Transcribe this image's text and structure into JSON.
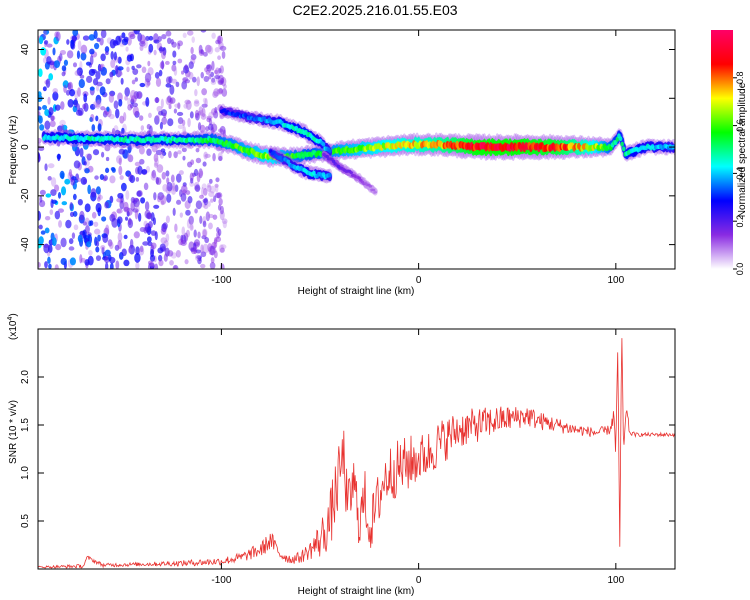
{
  "title": "C2E2.2025.216.01.55.E03",
  "chart_data": [
    {
      "type": "heatmap",
      "xlabel": "Height of straight line (km)",
      "ylabel": "Frequency (Hz)",
      "xlim": [
        -193,
        130
      ],
      "ylim": [
        -50,
        48
      ],
      "xticks": [
        -100,
        0,
        100
      ],
      "xtick_labels": [
        "-100",
        "0",
        "100"
      ],
      "yticks": [
        40,
        20,
        0,
        -20,
        -40
      ],
      "ytick_labels": [
        "40",
        "20",
        "0",
        "-20",
        "-40"
      ],
      "colorbar": {
        "label": "Normalized spectral amplitude",
        "range": [
          0.0,
          1.0
        ],
        "ticks": [
          0.0,
          0.2,
          0.4,
          0.6,
          0.8
        ],
        "tick_labels": [
          "0.0",
          "0.2",
          "0.4",
          "0.6",
          "0.8"
        ],
        "colormap": [
          "#ffffff",
          "#8a2be2",
          "#0000ff",
          "#00ffff",
          "#00ff00",
          "#ffff00",
          "#ff0000",
          "#ff0066"
        ]
      },
      "ridges": [
        {
          "x": [
            -190,
            -150,
            -120,
            -105,
            -95,
            -85,
            -75,
            -65,
            -55,
            -45,
            -35,
            -20,
            -5,
            10,
            30,
            50,
            70,
            90,
            98,
            102,
            105,
            115,
            130
          ],
          "y": [
            4,
            3,
            3,
            3,
            1,
            -2,
            -4,
            -4,
            -3,
            -2,
            -1,
            0,
            1,
            1,
            0,
            0,
            0,
            0,
            0,
            5,
            -3,
            0,
            0
          ],
          "amplitude": [
            0.45,
            0.5,
            0.5,
            0.55,
            0.6,
            0.65,
            0.7,
            0.6,
            0.55,
            0.6,
            0.65,
            0.7,
            0.75,
            0.8,
            0.95,
            0.95,
            0.9,
            0.7,
            0.55,
            0.5,
            0.5,
            0.45,
            0.4
          ]
        },
        {
          "x": [
            -100,
            -85,
            -70,
            -58,
            -50,
            -45
          ],
          "y": [
            15,
            12,
            10,
            6,
            2,
            -2
          ],
          "amplitude": [
            0.3,
            0.35,
            0.45,
            0.5,
            0.45,
            0.4
          ]
        },
        {
          "x": [
            -75,
            -65,
            -55,
            -45
          ],
          "y": [
            -2,
            -7,
            -11,
            -12
          ],
          "amplitude": [
            0.3,
            0.4,
            0.45,
            0.4
          ]
        },
        {
          "x": [
            -48,
            -40,
            -30,
            -22
          ],
          "y": [
            -3,
            -8,
            -13,
            -18
          ],
          "amplitude": [
            0.2,
            0.2,
            0.15,
            0.1
          ]
        }
      ],
      "noise_region": {
        "x": [
          -193,
          -98
        ],
        "y": [
          -50,
          48
        ],
        "amplitude_max": 0.25
      }
    },
    {
      "type": "line",
      "xlabel": "Height of straight line (km)",
      "ylabel": "SNR (10 * v/v)",
      "y_multiplier": "(x10",
      "y_multiplier_exp": "4",
      "y_multiplier_close": ")",
      "xlim": [
        -193,
        130
      ],
      "ylim": [
        0,
        2.5
      ],
      "xticks": [
        -100,
        0,
        100
      ],
      "xtick_labels": [
        "-100",
        "0",
        "100"
      ],
      "yticks": [
        0.5,
        1.0,
        1.5,
        2.0
      ],
      "ytick_labels": [
        "0.5",
        "1.0",
        "1.5",
        "2.0"
      ],
      "series": [
        {
          "color": "#e8322f",
          "x": [
            -193,
            -170,
            -168,
            -160,
            -140,
            -120,
            -100,
            -90,
            -80,
            -75,
            -70,
            -65,
            -60,
            -55,
            -50,
            -45,
            -42,
            -38,
            -36,
            -33,
            -30,
            -27,
            -25,
            -22,
            -18,
            -15,
            -10,
            -5,
            0,
            5,
            10,
            20,
            30,
            40,
            50,
            55,
            60,
            70,
            80,
            90,
            97,
            99,
            100,
            101,
            102,
            103,
            104,
            105,
            107,
            110,
            120,
            130
          ],
          "y": [
            0.02,
            0.03,
            0.12,
            0.04,
            0.05,
            0.06,
            0.08,
            0.12,
            0.2,
            0.3,
            0.15,
            0.1,
            0.12,
            0.2,
            0.3,
            0.5,
            0.8,
            1.2,
            0.6,
            0.9,
            0.5,
            0.75,
            0.4,
            0.6,
            0.9,
            1.0,
            1.05,
            1.1,
            1.15,
            1.2,
            1.3,
            1.45,
            1.5,
            1.55,
            1.58,
            1.6,
            1.55,
            1.5,
            1.45,
            1.42,
            1.45,
            1.6,
            1.2,
            2.3,
            0.2,
            2.5,
            1.1,
            1.7,
            1.42,
            1.4,
            1.4,
            1.4
          ],
          "noise": [
            0.01,
            0.02,
            0.02,
            0.02,
            0.02,
            0.03,
            0.04,
            0.05,
            0.08,
            0.1,
            0.06,
            0.05,
            0.06,
            0.1,
            0.2,
            0.3,
            0.35,
            0.3,
            0.3,
            0.3,
            0.3,
            0.3,
            0.25,
            0.3,
            0.3,
            0.3,
            0.3,
            0.3,
            0.25,
            0.25,
            0.25,
            0.2,
            0.18,
            0.15,
            0.12,
            0.12,
            0.1,
            0.08,
            0.06,
            0.05,
            0.05,
            0.1,
            0.1,
            0.1,
            0.1,
            0.1,
            0.1,
            0.1,
            0.03,
            0.02,
            0.02,
            0.02
          ]
        }
      ]
    }
  ]
}
